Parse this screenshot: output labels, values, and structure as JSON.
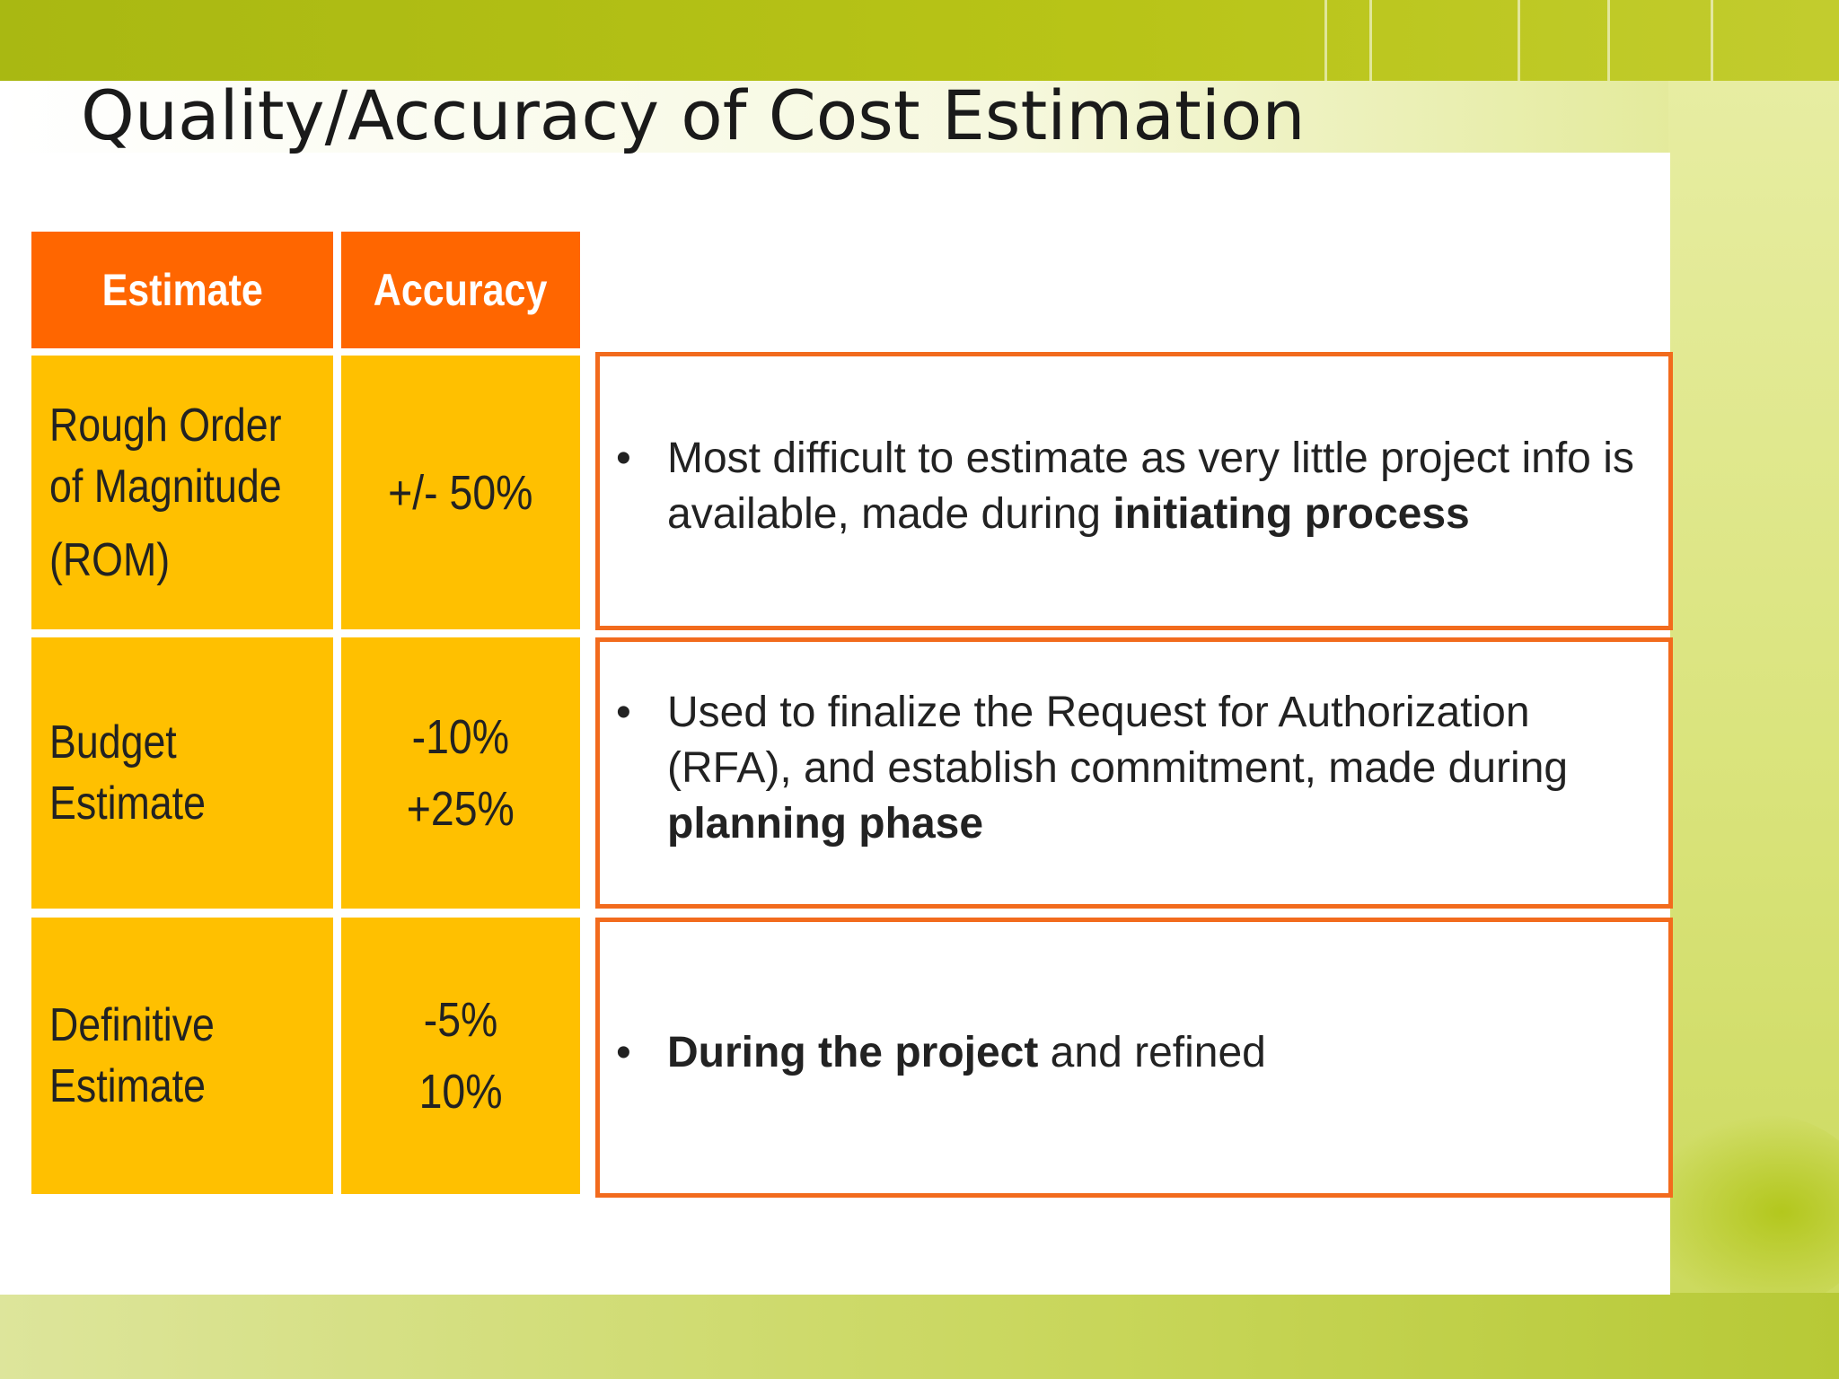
{
  "slide": {
    "title": "Quality/Accuracy of Cost Estimation"
  },
  "table": {
    "headers": {
      "estimate": "Estimate",
      "accuracy": "Accuracy"
    },
    "rows": [
      {
        "estimate_lines": [
          "Rough Order",
          "of Magnitude",
          "(ROM)"
        ],
        "accuracy_lines": [
          "+/- 50%"
        ],
        "description": {
          "bullet": "•",
          "parts": [
            {
              "text": "Most difficult to estimate as very little project info is available, made during ",
              "bold": false
            },
            {
              "text": "initiating process",
              "bold": true
            }
          ]
        }
      },
      {
        "estimate_lines": [
          "Budget",
          "Estimate"
        ],
        "accuracy_lines": [
          "-10%",
          "+25%"
        ],
        "description": {
          "bullet": "•",
          "parts": [
            {
              "text": "Used to finalize the Request for Authorization (RFA), and establish commitment, made during ",
              "bold": false
            },
            {
              "text": "planning phase",
              "bold": true
            }
          ]
        }
      },
      {
        "estimate_lines": [
          "Definitive",
          "Estimate"
        ],
        "accuracy_lines": [
          "-5%",
          "10%"
        ],
        "description": {
          "bullet": "•",
          "parts": [
            {
              "text": "During the project",
              "bold": true
            },
            {
              "text": " and refined",
              "bold": false
            }
          ]
        }
      }
    ]
  },
  "colors": {
    "header_orange": "#ff6600",
    "cell_amber": "#ffc000",
    "box_border": "#f26b1d",
    "band_green": "#b5c117"
  }
}
